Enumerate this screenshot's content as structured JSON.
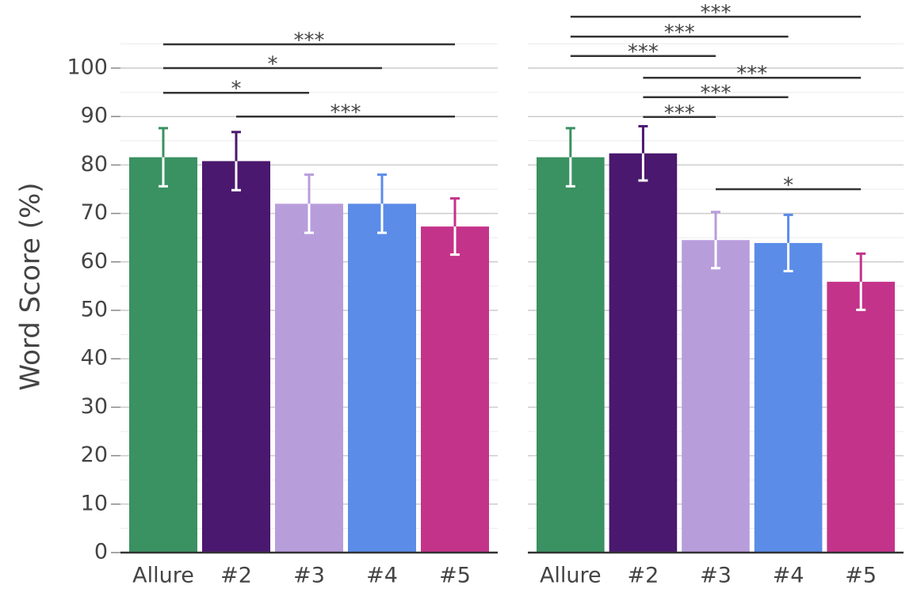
{
  "chart_data": [
    {
      "type": "bar",
      "ylabel": "Word Score (%)",
      "categories": [
        "Allure",
        "#2",
        "#3",
        "#4",
        "#5"
      ],
      "values": [
        81.6,
        80.8,
        72.0,
        72.0,
        67.3
      ],
      "errors": [
        6.0,
        6.0,
        6.0,
        6.0,
        5.8
      ],
      "colors": [
        "#3a9162",
        "#4a186e",
        "#b89ddb",
        "#5b8ce8",
        "#c4338a"
      ],
      "ylim": [
        0,
        110
      ],
      "yticks": [
        0,
        10,
        20,
        30,
        40,
        50,
        60,
        70,
        80,
        90,
        100
      ],
      "minor_yticks": [
        5,
        15,
        25,
        35,
        45,
        55,
        65,
        75,
        85,
        95,
        105
      ],
      "ytick_labels": true,
      "grid": true,
      "brackets": [
        {
          "from": "Allure",
          "to": "#5",
          "y": 104.9,
          "label": "***"
        },
        {
          "from": "Allure",
          "to": "#4",
          "y": 100,
          "label": "*"
        },
        {
          "from": "Allure",
          "to": "#3",
          "y": 94.9,
          "label": "*"
        },
        {
          "from": "#2",
          "to": "#5",
          "y": 90,
          "label": "***"
        }
      ]
    },
    {
      "type": "bar",
      "categories": [
        "Allure",
        "#2",
        "#3",
        "#4",
        "#5"
      ],
      "values": [
        81.6,
        82.4,
        64.5,
        63.9,
        55.9
      ],
      "errors": [
        6.0,
        5.6,
        5.8,
        5.8,
        5.8
      ],
      "colors": [
        "#3a9162",
        "#4a186e",
        "#b89ddb",
        "#5b8ce8",
        "#c4338a"
      ],
      "ylim": [
        0,
        110
      ],
      "yticks": [
        0,
        10,
        20,
        30,
        40,
        50,
        60,
        70,
        80,
        90,
        100
      ],
      "minor_yticks": [
        5,
        15,
        25,
        35,
        45,
        55,
        65,
        75,
        85,
        95,
        105
      ],
      "ytick_labels": false,
      "grid": true,
      "brackets": [
        {
          "from": "Allure",
          "to": "#5",
          "y": 110.6,
          "label": "***"
        },
        {
          "from": "Allure",
          "to": "#4",
          "y": 106.5,
          "label": "***"
        },
        {
          "from": "Allure",
          "to": "#3",
          "y": 102.5,
          "label": "***"
        },
        {
          "from": "#2",
          "to": "#5",
          "y": 98,
          "label": "***"
        },
        {
          "from": "#2",
          "to": "#4",
          "y": 94,
          "label": "***"
        },
        {
          "from": "#2",
          "to": "#3",
          "y": 89.9,
          "label": "***"
        },
        {
          "from": "#3",
          "to": "#5",
          "y": 75,
          "label": "*"
        }
      ]
    }
  ]
}
